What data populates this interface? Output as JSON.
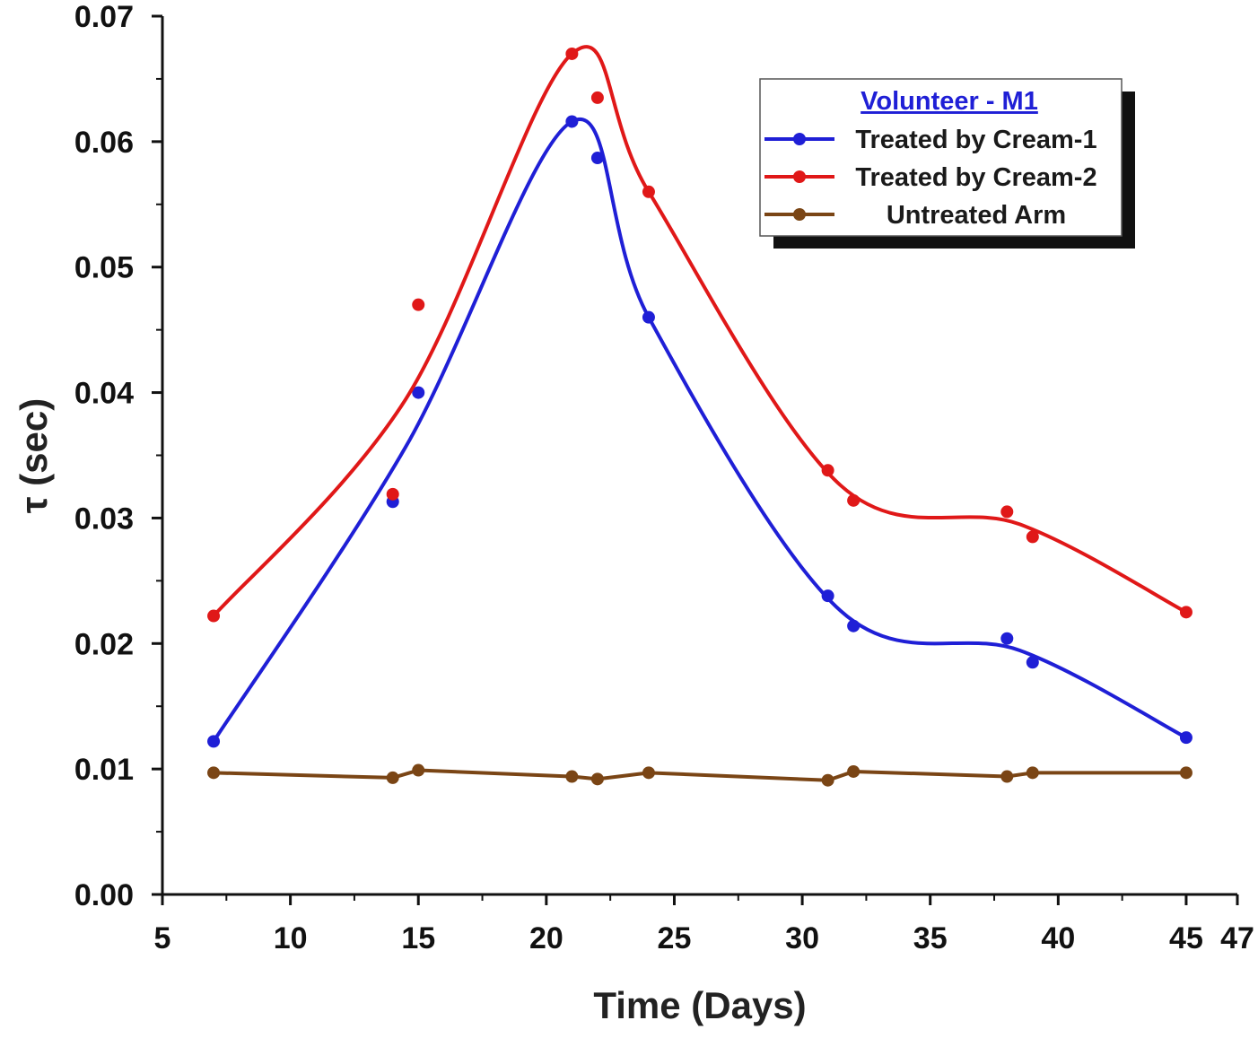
{
  "chart_data": {
    "type": "line",
    "title": "",
    "xlabel": "Time (Days)",
    "ylabel": "τ (sec)",
    "xlim": [
      5,
      47
    ],
    "ylim": [
      0,
      0.07
    ],
    "x_ticks": [
      5,
      10,
      15,
      20,
      25,
      30,
      35,
      40,
      45,
      47
    ],
    "x_tick_labels": [
      "5",
      "10",
      "15",
      "20",
      "25",
      "30",
      "35",
      "40",
      "45",
      "47"
    ],
    "y_ticks": [
      0,
      0.01,
      0.02,
      0.03,
      0.04,
      0.05,
      0.06,
      0.07
    ],
    "y_tick_labels": [
      "0.00",
      "0.01",
      "0.02",
      "0.03",
      "0.04",
      "0.05",
      "0.06",
      "0.07"
    ],
    "x": [
      7,
      14,
      15,
      21,
      22,
      24,
      31,
      32,
      38,
      39,
      45
    ],
    "legend": {
      "title": "Volunteer - M1",
      "position": "top-right"
    },
    "series": [
      {
        "name": "Treated by Cream-1",
        "color": "#1f1fd6",
        "values": [
          0.0122,
          0.0313,
          0.04,
          0.0616,
          0.0587,
          0.046,
          0.0238,
          0.0214,
          0.0204,
          0.0185,
          0.0125
        ]
      },
      {
        "name": "Treated by Cream-2",
        "color": "#e01818",
        "values": [
          0.0222,
          0.0319,
          0.047,
          0.067,
          0.0635,
          0.056,
          0.0338,
          0.0314,
          0.0305,
          0.0285,
          0.0225
        ]
      },
      {
        "name": "Untreated Arm",
        "color": "#7a4515",
        "values": [
          0.0097,
          0.0093,
          0.0099,
          0.0094,
          0.0092,
          0.0097,
          0.0091,
          0.0098,
          0.0094,
          0.0097,
          0.0097
        ]
      }
    ],
    "colors": {
      "legend_title": "#1f1fd6",
      "axis": "#111111",
      "legend_shadow": "#111111"
    }
  }
}
